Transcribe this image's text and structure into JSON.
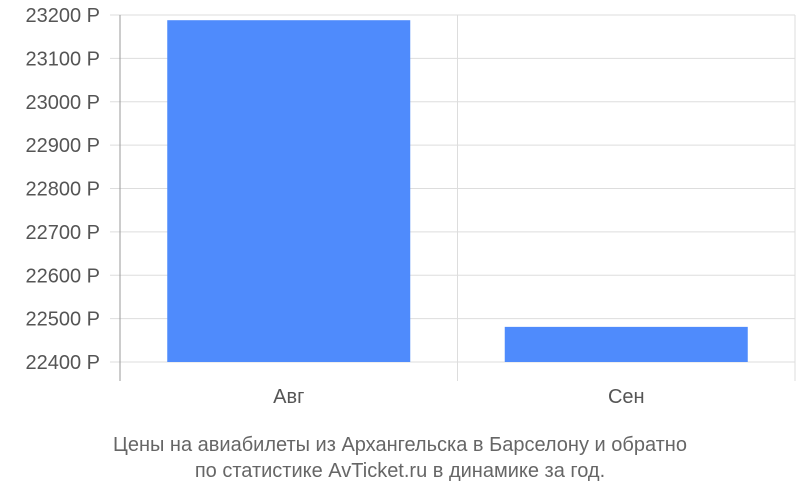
{
  "chart_data": {
    "type": "bar",
    "categories": [
      "Авг",
      "Сен"
    ],
    "values": [
      23188,
      22481
    ],
    "y_tick_labels": [
      "22400 Р",
      "22500 Р",
      "22600 Р",
      "22700 Р",
      "22800 Р",
      "22900 Р",
      "23000 Р",
      "23100 Р",
      "23200 Р"
    ],
    "ylim": [
      22400,
      23200
    ],
    "grid": true,
    "bar_color": "#4f8bfc",
    "grid_color": "#dddddd",
    "axis_color": "#999999"
  },
  "caption": {
    "line1": "Цены на авиабилеты из Архангельска в Барселону и обратно",
    "line2": "по статистике AvTicket.ru в динамике за год."
  }
}
